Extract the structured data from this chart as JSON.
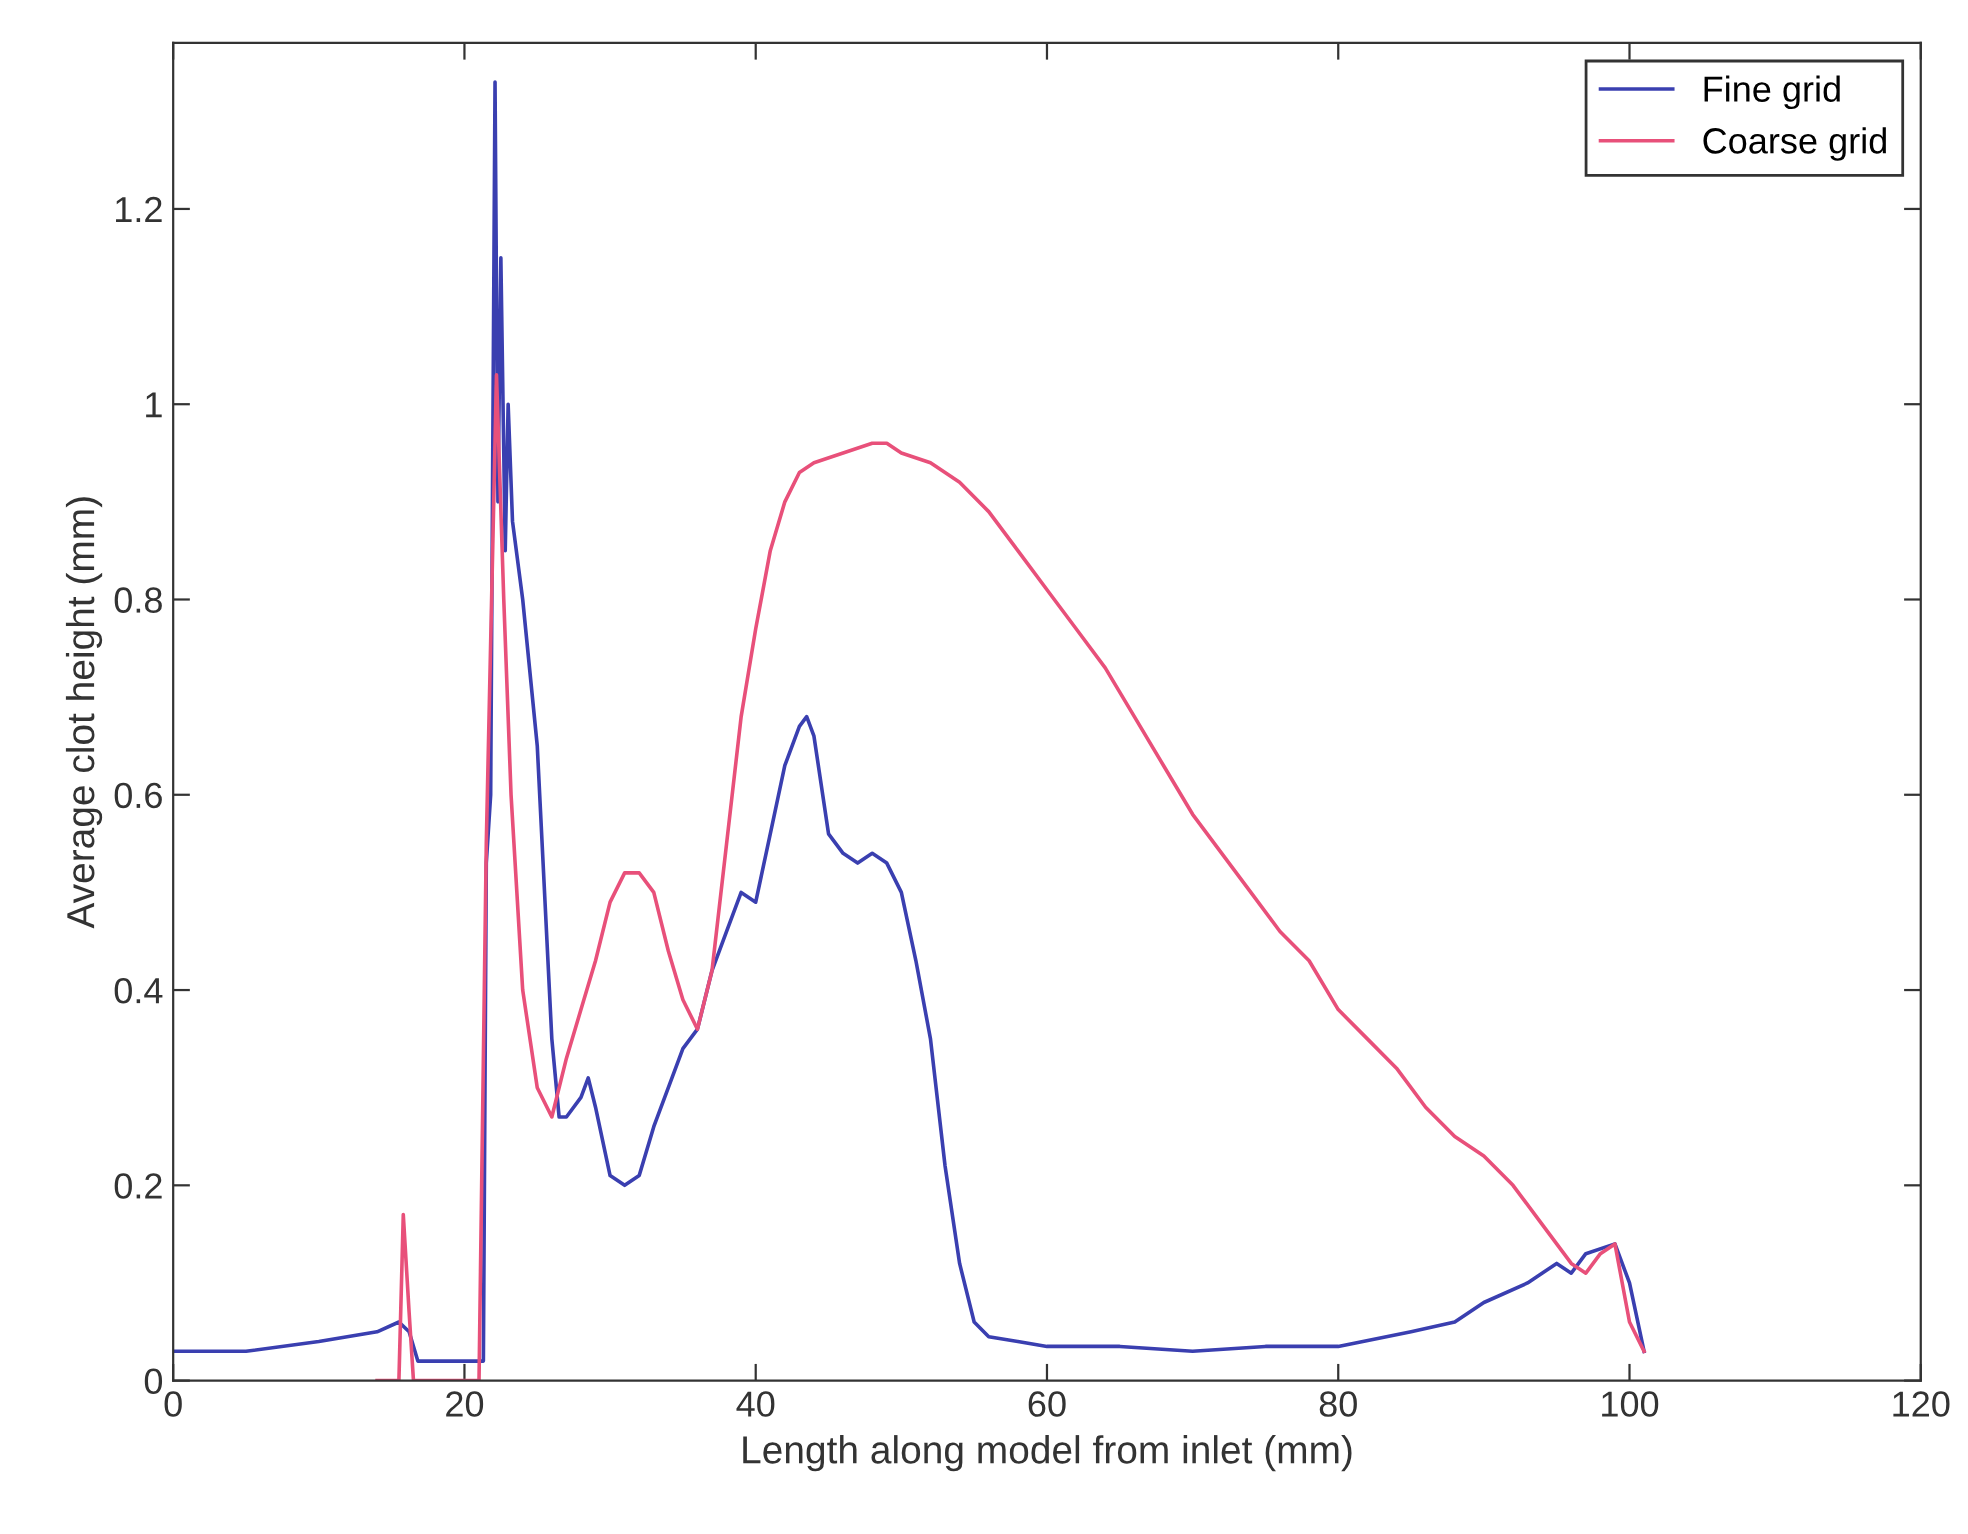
{
  "chart_data": {
    "type": "line",
    "xlabel": "Length along model from inlet (mm)",
    "ylabel": "Average clot height (mm)",
    "xlim": [
      0,
      120
    ],
    "xticks": [
      0,
      20,
      40,
      60,
      80,
      100,
      120
    ],
    "ylim": [
      0,
      1.37
    ],
    "yticks": [
      0,
      0.2,
      0.4,
      0.6,
      0.8,
      1,
      1.2
    ],
    "grid": false,
    "legend": "top right",
    "line_style": "solid",
    "marker": "none",
    "series": [
      {
        "name": "Fine grid",
        "color": "#3a3fb0",
        "x": [
          0,
          5,
          10,
          14,
          15.5,
          16.2,
          16.8,
          20,
          21.3,
          21.5,
          21.8,
          22.1,
          22.3,
          22.5,
          22.8,
          23,
          23.3,
          24,
          25,
          26,
          26.5,
          27,
          28,
          28.5,
          29,
          30,
          31,
          32,
          33,
          34,
          35,
          36,
          37,
          38,
          39,
          40,
          41,
          42,
          43,
          43.5,
          44,
          45,
          46,
          47,
          48,
          49,
          50,
          51,
          52,
          53,
          54,
          55,
          56,
          58,
          60,
          65,
          70,
          75,
          80,
          85,
          88,
          90,
          93,
          95,
          96,
          97,
          99,
          100,
          101
        ],
        "values": [
          0.03,
          0.03,
          0.04,
          0.05,
          0.06,
          0.05,
          0.02,
          0.02,
          0.02,
          0.53,
          0.6,
          1.33,
          0.9,
          1.15,
          0.85,
          1.0,
          0.88,
          0.8,
          0.65,
          0.35,
          0.27,
          0.27,
          0.29,
          0.31,
          0.28,
          0.21,
          0.2,
          0.21,
          0.26,
          0.3,
          0.34,
          0.36,
          0.42,
          0.46,
          0.5,
          0.49,
          0.56,
          0.63,
          0.67,
          0.68,
          0.66,
          0.56,
          0.54,
          0.53,
          0.54,
          0.53,
          0.5,
          0.43,
          0.35,
          0.22,
          0.12,
          0.06,
          0.045,
          0.04,
          0.035,
          0.035,
          0.03,
          0.035,
          0.035,
          0.05,
          0.06,
          0.08,
          0.1,
          0.12,
          0.11,
          0.13,
          0.14,
          0.1,
          0.03
        ]
      },
      {
        "name": "Coarse grid",
        "color": "#e8507a",
        "x": [
          14,
          15.5,
          15.8,
          16.2,
          16.5,
          21,
          21.5,
          22.2,
          22.7,
          23.2,
          24,
          25,
          26,
          27,
          28,
          29,
          30,
          31,
          32,
          33,
          34,
          35,
          36,
          37,
          38,
          39,
          40,
          41,
          42,
          43,
          44,
          46,
          48,
          49,
          50,
          52,
          54,
          56,
          58,
          60,
          62,
          64,
          66,
          68,
          70,
          72,
          74,
          76,
          78,
          80,
          82,
          84,
          86,
          88,
          90,
          92,
          94,
          96,
          97,
          98,
          99,
          100,
          101
        ],
        "values": [
          0,
          0,
          0.17,
          0.07,
          0,
          0,
          0.55,
          1.03,
          0.8,
          0.6,
          0.4,
          0.3,
          0.27,
          0.33,
          0.38,
          0.43,
          0.49,
          0.52,
          0.52,
          0.5,
          0.44,
          0.39,
          0.36,
          0.42,
          0.55,
          0.68,
          0.77,
          0.85,
          0.9,
          0.93,
          0.94,
          0.95,
          0.96,
          0.96,
          0.95,
          0.94,
          0.92,
          0.89,
          0.85,
          0.81,
          0.77,
          0.73,
          0.68,
          0.63,
          0.58,
          0.54,
          0.5,
          0.46,
          0.43,
          0.38,
          0.35,
          0.32,
          0.28,
          0.25,
          0.23,
          0.2,
          0.16,
          0.12,
          0.11,
          0.13,
          0.14,
          0.06,
          0.03
        ]
      }
    ]
  }
}
